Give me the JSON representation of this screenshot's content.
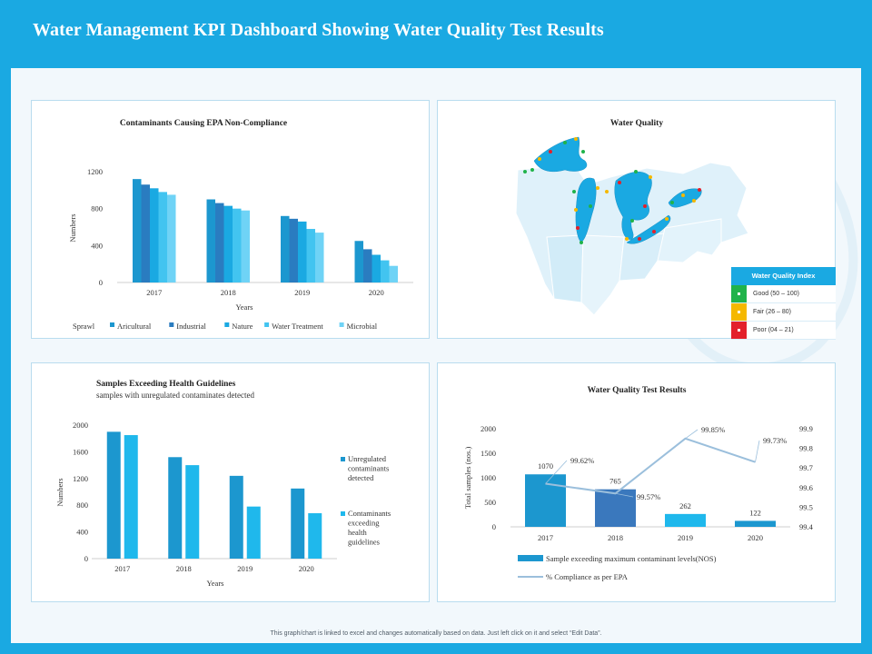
{
  "page": {
    "title": "Water Management KPI Dashboard Showing Water Quality Test Results",
    "footnote": "This graph/chart is linked to excel and changes automatically based on data. Just left click on it and select “Edit Data”.",
    "colors": {
      "brand": "#1aa9e2",
      "canvas": "#f2f8fc"
    }
  },
  "water_quality": {
    "title": "Water Quality",
    "legend_title": "Water Quality Index",
    "legend": [
      {
        "label": "Good (50 – 100)",
        "color": "#20b34a"
      },
      {
        "label": "Fair (26 – 80)",
        "color": "#f5b800"
      },
      {
        "label": "Poor (04 – 21)",
        "color": "#e3202b"
      }
    ]
  },
  "chart_data": [
    {
      "type": "bar",
      "title": "Contaminants Causing EPA Non-Compliance",
      "xlabel": "Years",
      "ylabel": "Numbers",
      "categories": [
        "2017",
        "2018",
        "2019",
        "2020"
      ],
      "ylim": [
        0,
        1200
      ],
      "yticks": [
        0,
        400,
        800,
        1200
      ],
      "legend_lead": "Sprawl",
      "legend_position": "bottom",
      "series": [
        {
          "name": "Aricultural",
          "color": "#1c97cf",
          "values": [
            1120,
            900,
            720,
            450
          ]
        },
        {
          "name": "Industrial",
          "color": "#2a7cc0",
          "values": [
            1060,
            860,
            690,
            360
          ]
        },
        {
          "name": "Nature",
          "color": "#1aa9e2",
          "values": [
            1020,
            830,
            660,
            300
          ]
        },
        {
          "name": "Water Treatment",
          "color": "#42c4f0",
          "values": [
            980,
            800,
            580,
            240
          ]
        },
        {
          "name": "Microbial",
          "color": "#6fd3f6",
          "values": [
            950,
            780,
            540,
            180
          ]
        }
      ]
    },
    {
      "type": "bar",
      "title": "Samples Exceeding Health Guidelines",
      "subtitle": "samples with unregulated contaminates detected",
      "xlabel": "Years",
      "ylabel": "Numbers",
      "categories": [
        "2017",
        "2018",
        "2019",
        "2020"
      ],
      "ylim": [
        0,
        2000
      ],
      "yticks": [
        0,
        400,
        800,
        1200,
        1600,
        2000
      ],
      "legend_position": "right",
      "series": [
        {
          "name": "Unregulated contaminants detected",
          "color": "#1c97cf",
          "values": [
            1900,
            1520,
            1240,
            1050
          ]
        },
        {
          "name": "Contaminants exceeding health guidelines",
          "color": "#1fb8ec",
          "values": [
            1850,
            1400,
            780,
            680
          ]
        }
      ]
    },
    {
      "type": "bar",
      "title": "Water Quality Test Results",
      "ylabel": "Total samples (nos.)",
      "categories": [
        "2017",
        "2018",
        "2019",
        "2020"
      ],
      "ylim": [
        0,
        2000
      ],
      "yticks": [
        0,
        500,
        1000,
        1500,
        2000
      ],
      "y2lim": [
        99.4,
        99.9
      ],
      "y2ticks": [
        "99.4",
        "99.5",
        "99.6",
        "99.7",
        "99.8",
        "99.9"
      ],
      "legend_position": "bottom",
      "series": [
        {
          "name": "Sample exceeding maximum contaminant levels(NOS)",
          "kind": "bar",
          "values": [
            1070,
            765,
            262,
            122
          ],
          "labels": [
            "1070",
            "765",
            "262",
            "122"
          ],
          "colors": [
            "#1c97cf",
            "#3a78bd",
            "#1fb8ec",
            "#1c97cf"
          ]
        },
        {
          "name": "% Compliance as per EPA",
          "kind": "line",
          "axis": "right",
          "color": "#9bbfdc",
          "values": [
            99.62,
            99.57,
            99.85,
            99.73
          ],
          "labels": [
            "99.62%",
            "99.57%",
            "99.85%",
            "99.73%"
          ]
        }
      ]
    }
  ]
}
